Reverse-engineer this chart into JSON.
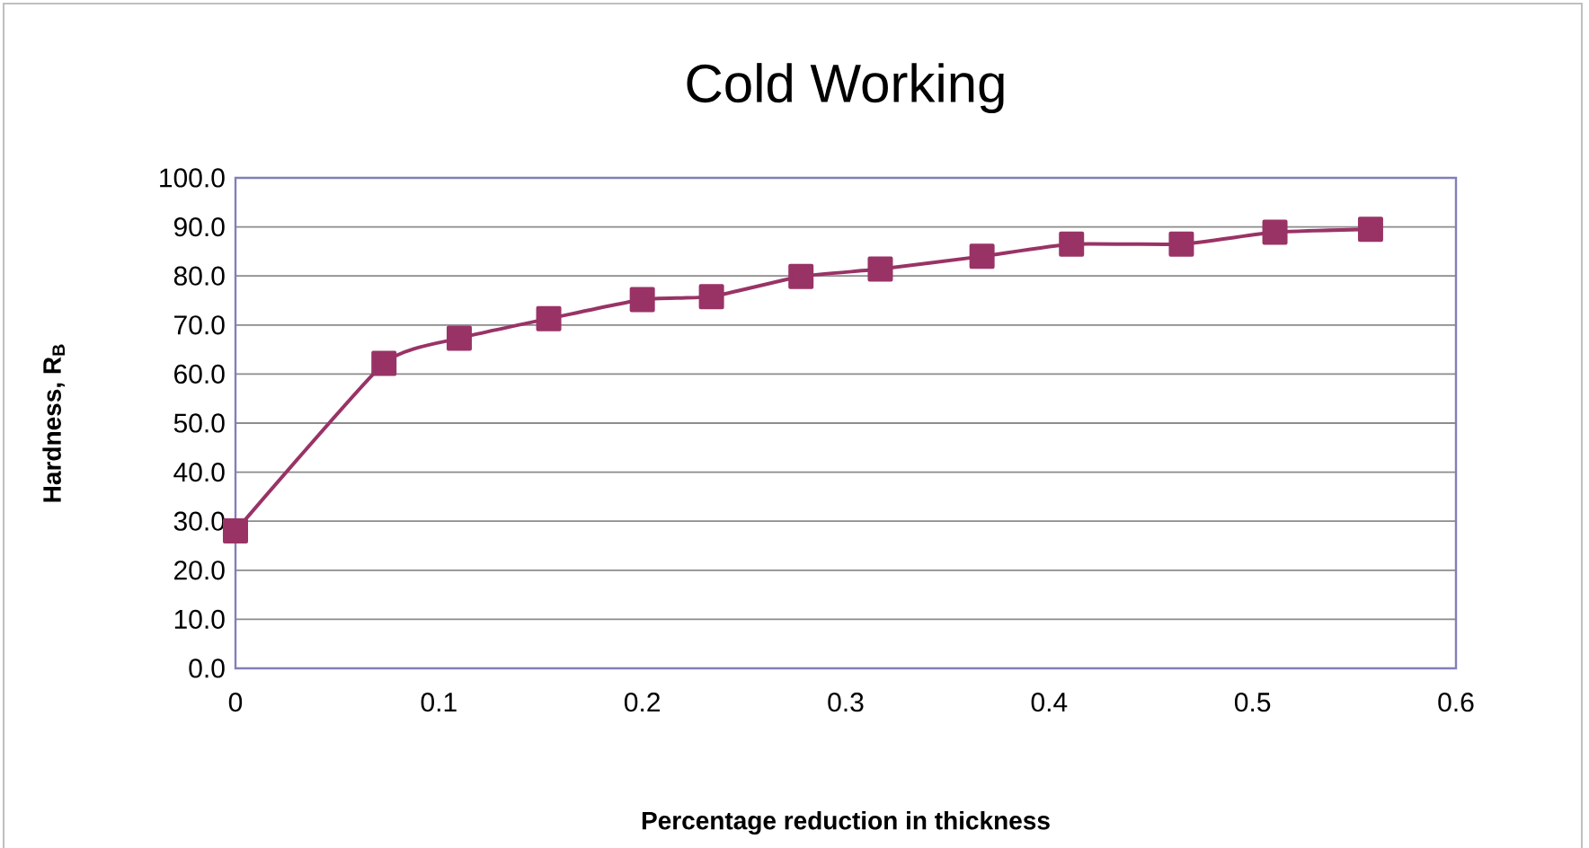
{
  "chart_data": {
    "type": "line",
    "title": "Cold Working",
    "xlabel": "Percentage reduction in thickness",
    "ylabel": "Hardness, R$_{B}$",
    "x": [
      0,
      0.073,
      0.11,
      0.154,
      0.2,
      0.234,
      0.278,
      0.317,
      0.367,
      0.411,
      0.465,
      0.511,
      0.558
    ],
    "series": [
      {
        "color": "#993366",
        "values": [
          28.0,
          62.2,
          67.3,
          71.3,
          75.2,
          75.8,
          79.9,
          81.4,
          84.0,
          86.5,
          86.5,
          88.9,
          89.5
        ]
      }
    ],
    "xlim": [
      0,
      0.6
    ],
    "xticks": [
      0,
      0.1,
      0.2,
      0.3,
      0.4,
      0.5,
      0.6
    ],
    "ylim": [
      0,
      100
    ],
    "yticks": [
      {
        "value": 0,
        "label": "0.0"
      },
      {
        "value": 10,
        "label": "10.0"
      },
      {
        "value": 20,
        "label": "20.0"
      },
      {
        "value": 30,
        "label": "30.0"
      },
      {
        "value": 40,
        "label": "40.0"
      },
      {
        "value": 50,
        "label": "50.0"
      },
      {
        "value": 60,
        "label": "60.0"
      },
      {
        "value": 70,
        "label": "70.0"
      },
      {
        "value": 80,
        "label": "80.0"
      },
      {
        "value": 90,
        "label": "90.0"
      },
      {
        "value": 100,
        "label": "100.0"
      }
    ],
    "grid": "y",
    "marker": "square",
    "line_style": "solid"
  }
}
